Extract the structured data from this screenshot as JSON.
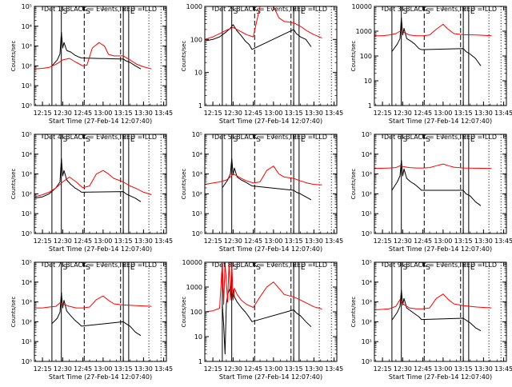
{
  "colors": {
    "events": "#000000",
    "lld": "#ff0000",
    "axis": "#000000"
  },
  "common": {
    "ylabel": "Counts/sec",
    "xlabel": "Start Time (27-Feb-14 12:07:40)",
    "x_ticks": [
      "12:15",
      "12:30",
      "12:45",
      "13:00",
      "13:15",
      "13:30",
      "13:45"
    ],
    "x_range": [
      "12:09",
      "13:47"
    ],
    "y_scale": "log",
    "grid": false,
    "markers": [
      {
        "label": "S",
        "time": "12:29",
        "style": "solid"
      },
      {
        "label": "",
        "time": "12:22",
        "style": "solid"
      },
      {
        "label": "S",
        "time": "12:46",
        "style": "dashed"
      },
      {
        "label": "F",
        "time": "13:13",
        "style": "dashed"
      },
      {
        "label": "",
        "time": "13:15",
        "style": "solid"
      },
      {
        "label": "E",
        "time": "13:19",
        "style": "solid"
      },
      {
        "label": "",
        "time": "13:34",
        "style": "dotted"
      },
      {
        "label": "",
        "time": "13:43",
        "style": "dotted"
      }
    ]
  },
  "chart_data": [
    {
      "type": "line",
      "title": "Det 1: BLACK = Events, RED = LLD",
      "y_ticks": [
        "10⁰",
        "10¹",
        "10²",
        "10³",
        "10⁴",
        "10⁵"
      ],
      "ylim": [
        1,
        100000
      ],
      "series": [
        {
          "color": "black",
          "x": [
            "12:22",
            "12:26",
            "12:28",
            "12:29",
            "12:30",
            "12:31",
            "12:33",
            "12:36",
            "12:39",
            "12:42",
            "12:44",
            "13:15",
            "13:17",
            "13:20",
            "13:24",
            "13:28"
          ],
          "y": [
            100,
            200,
            400,
            5000,
            800,
            1500,
            600,
            500,
            350,
            280,
            250,
            220,
            180,
            150,
            100,
            70
          ]
        },
        {
          "color": "red",
          "x": [
            "12:09",
            "12:15",
            "12:20",
            "12:25",
            "12:28",
            "12:30",
            "12:35",
            "12:40",
            "12:45",
            "12:48",
            "12:52",
            "12:57",
            "13:01",
            "13:04",
            "13:08",
            "13:15",
            "13:20",
            "13:25",
            "13:30",
            "13:36"
          ],
          "y": [
            70,
            75,
            85,
            120,
            160,
            200,
            240,
            150,
            100,
            110,
            800,
            1500,
            1000,
            380,
            320,
            320,
            200,
            120,
            90,
            70
          ]
        }
      ]
    },
    {
      "type": "line",
      "title": "Det 2: BLACK = Events, RED = LLD",
      "y_ticks": [
        "1",
        "10",
        "100",
        "1000"
      ],
      "ylim": [
        1,
        1000
      ],
      "series": [
        {
          "color": "black",
          "x": [
            "12:09",
            "12:15",
            "12:20",
            "12:25",
            "12:28",
            "12:30",
            "12:33",
            "12:36",
            "12:39",
            "12:42",
            "12:44",
            "13:15",
            "13:17",
            "13:20",
            "13:24",
            "13:28"
          ],
          "y": [
            90,
            100,
            120,
            170,
            220,
            280,
            180,
            130,
            90,
            70,
            50,
            200,
            150,
            120,
            100,
            60
          ]
        },
        {
          "color": "red",
          "x": [
            "12:09",
            "12:15",
            "12:20",
            "12:25",
            "12:30",
            "12:35",
            "12:40",
            "12:45",
            "12:50",
            "12:55",
            "13:00",
            "13:04",
            "13:08",
            "13:15",
            "13:20",
            "13:25",
            "13:30",
            "13:36"
          ],
          "y": [
            100,
            120,
            150,
            190,
            230,
            180,
            140,
            120,
            1000,
            1000,
            1000,
            450,
            350,
            320,
            250,
            180,
            140,
            110
          ]
        }
      ]
    },
    {
      "type": "line",
      "title": "Det 3: BLACK = Events, RED = LLD",
      "y_ticks": [
        "1",
        "10",
        "100",
        "1000",
        "10000"
      ],
      "ylim": [
        1,
        10000
      ],
      "series": [
        {
          "color": "black",
          "x": [
            "12:22",
            "12:26",
            "12:28",
            "12:29",
            "12:30",
            "12:31",
            "12:33",
            "12:36",
            "12:39",
            "12:42",
            "12:44",
            "13:15",
            "13:17",
            "13:20",
            "13:24",
            "13:28"
          ],
          "y": [
            150,
            300,
            500,
            3500,
            700,
            1300,
            500,
            400,
            300,
            200,
            180,
            200,
            150,
            120,
            80,
            40
          ]
        },
        {
          "color": "red",
          "x": [
            "12:09",
            "12:15",
            "12:20",
            "12:25",
            "12:28",
            "12:30",
            "12:35",
            "12:40",
            "12:45",
            "12:50",
            "12:55",
            "13:00",
            "13:03",
            "13:08",
            "13:15",
            "13:25",
            "13:36"
          ],
          "y": [
            650,
            650,
            700,
            800,
            1000,
            950,
            700,
            650,
            650,
            700,
            1200,
            1900,
            1300,
            800,
            720,
            700,
            650
          ]
        }
      ]
    },
    {
      "type": "line",
      "title": "Det 4: BLACK = Events, RED = LLD",
      "y_ticks": [
        "10⁰",
        "10¹",
        "10²",
        "10³",
        "10⁴",
        "10⁵"
      ],
      "ylim": [
        1,
        100000
      ],
      "series": [
        {
          "color": "black",
          "x": [
            "12:09",
            "12:15",
            "12:20",
            "12:25",
            "12:28",
            "12:29",
            "12:30",
            "12:31",
            "12:33",
            "12:36",
            "12:39",
            "12:42",
            "12:44",
            "13:15",
            "13:17",
            "13:20",
            "13:24",
            "13:28"
          ],
          "y": [
            60,
            70,
            100,
            200,
            400,
            6000,
            800,
            1500,
            500,
            300,
            200,
            150,
            120,
            130,
            100,
            80,
            60,
            40
          ]
        },
        {
          "color": "red",
          "x": [
            "12:09",
            "12:15",
            "12:20",
            "12:25",
            "12:28",
            "12:30",
            "12:35",
            "12:40",
            "12:45",
            "12:50",
            "12:55",
            "13:00",
            "13:04",
            "13:08",
            "13:15",
            "13:20",
            "13:25",
            "13:30",
            "13:36"
          ],
          "y": [
            70,
            90,
            120,
            200,
            300,
            400,
            700,
            400,
            200,
            250,
            1000,
            1500,
            1000,
            600,
            400,
            250,
            180,
            120,
            90
          ]
        }
      ]
    },
    {
      "type": "line",
      "title": "Det 5: BLACK = Events, RED = LLD",
      "y_ticks": [
        "10⁰",
        "10¹",
        "10²",
        "10³",
        "10⁴",
        "10⁵"
      ],
      "ylim": [
        1,
        100000
      ],
      "series": [
        {
          "color": "black",
          "x": [
            "12:22",
            "12:26",
            "12:28",
            "12:29",
            "12:30",
            "12:31",
            "12:33",
            "12:36",
            "12:39",
            "12:42",
            "12:44",
            "13:15",
            "13:17",
            "13:20",
            "13:24",
            "13:28"
          ],
          "y": [
            200,
            500,
            1000,
            6000,
            900,
            2000,
            700,
            500,
            400,
            300,
            250,
            150,
            120,
            100,
            70,
            50
          ]
        },
        {
          "color": "red",
          "x": [
            "12:09",
            "12:15",
            "12:20",
            "12:25",
            "12:28",
            "12:30",
            "12:33",
            "12:36",
            "12:40",
            "12:45",
            "12:50",
            "12:55",
            "13:00",
            "13:04",
            "13:08",
            "13:15",
            "13:20",
            "13:25",
            "13:30",
            "13:36"
          ],
          "y": [
            300,
            350,
            400,
            500,
            700,
            1000,
            800,
            600,
            450,
            350,
            400,
            1500,
            2500,
            1000,
            700,
            600,
            450,
            350,
            300,
            280
          ]
        }
      ]
    },
    {
      "type": "line",
      "title": "Det 6: BLACK = Events, RED = LLD",
      "y_ticks": [
        "10⁰",
        "10¹",
        "10²",
        "10³",
        "10⁴",
        "10⁵"
      ],
      "ylim": [
        1,
        100000
      ],
      "series": [
        {
          "color": "black",
          "x": [
            "12:22",
            "12:26",
            "12:28",
            "12:29",
            "12:30",
            "12:31",
            "12:33",
            "12:36",
            "12:39",
            "12:42",
            "12:44",
            "13:15",
            "13:17",
            "13:20",
            "13:24",
            "13:28"
          ],
          "y": [
            150,
            400,
            800,
            5000,
            800,
            1800,
            600,
            400,
            300,
            200,
            150,
            150,
            100,
            80,
            40,
            25
          ]
        },
        {
          "color": "red",
          "x": [
            "12:09",
            "12:15",
            "12:20",
            "12:25",
            "12:28",
            "12:30",
            "12:35",
            "12:40",
            "12:45",
            "12:50",
            "12:55",
            "13:00",
            "13:04",
            "13:08",
            "13:15",
            "13:25",
            "13:36"
          ],
          "y": [
            1900,
            1950,
            2000,
            2100,
            2600,
            2400,
            2100,
            2000,
            2000,
            2100,
            2600,
            3200,
            2600,
            2200,
            2000,
            1950,
            1900
          ]
        }
      ]
    },
    {
      "type": "line",
      "title": "Det 7: BLACK = Events, RED = LLD",
      "y_ticks": [
        "10⁰",
        "10¹",
        "10²",
        "10³",
        "10⁴",
        "10⁵"
      ],
      "ylim": [
        1,
        100000
      ],
      "series": [
        {
          "color": "black",
          "x": [
            "12:22",
            "12:26",
            "12:28",
            "12:29",
            "12:30",
            "12:31",
            "12:33",
            "12:36",
            "12:39",
            "12:42",
            "12:44",
            "13:15",
            "13:17",
            "13:20",
            "13:24",
            "13:28"
          ],
          "y": [
            80,
            150,
            300,
            3000,
            500,
            1200,
            350,
            200,
            120,
            80,
            60,
            100,
            80,
            60,
            30,
            20
          ]
        },
        {
          "color": "red",
          "x": [
            "12:09",
            "12:15",
            "12:20",
            "12:25",
            "12:28",
            "12:30",
            "12:35",
            "12:40",
            "12:45",
            "12:50",
            "12:55",
            "13:00",
            "13:04",
            "13:08",
            "13:15",
            "13:25",
            "13:36"
          ],
          "y": [
            500,
            500,
            550,
            600,
            900,
            800,
            600,
            500,
            500,
            550,
            1300,
            2000,
            1200,
            800,
            700,
            650,
            600
          ]
        }
      ]
    },
    {
      "type": "line",
      "title": "Det 8: BLACK = Events, RED = LLD",
      "y_ticks": [
        "1",
        "10",
        "100",
        "1000",
        "10000"
      ],
      "ylim": [
        1,
        10000
      ],
      "series": [
        {
          "color": "black",
          "x": [
            "12:22",
            "12:23",
            "12:24",
            "12:25",
            "12:26",
            "12:28",
            "12:29",
            "12:30",
            "12:31",
            "12:33",
            "12:36",
            "12:39",
            "12:42",
            "12:44",
            "13:15",
            "13:17",
            "13:20",
            "13:24",
            "13:28"
          ],
          "y": [
            200,
            30,
            2,
            200,
            500,
            1000,
            300,
            800,
            400,
            250,
            150,
            100,
            60,
            40,
            120,
            90,
            70,
            40,
            25
          ]
        },
        {
          "color": "red",
          "x": [
            "12:09",
            "12:15",
            "12:20",
            "12:22",
            "12:23",
            "12:24",
            "12:26",
            "12:27",
            "12:28",
            "12:29",
            "12:30",
            "12:31",
            "12:33",
            "12:36",
            "12:40",
            "12:45",
            "12:50",
            "12:55",
            "13:00",
            "13:04",
            "13:08",
            "13:15",
            "13:20",
            "13:25",
            "13:30",
            "13:36"
          ],
          "y": [
            100,
            110,
            140,
            10000,
            200,
            10000,
            250,
            10000,
            300,
            10000,
            300,
            900,
            500,
            300,
            200,
            150,
            400,
            1000,
            1600,
            900,
            500,
            400,
            300,
            220,
            160,
            130
          ]
        }
      ]
    },
    {
      "type": "line",
      "title": "Det 9: BLACK = Events, RED = LLD",
      "y_ticks": [
        "10⁰",
        "10¹",
        "10²",
        "10³",
        "10⁴",
        "10⁵"
      ],
      "ylim": [
        1,
        100000
      ],
      "series": [
        {
          "color": "black",
          "x": [
            "12:22",
            "12:26",
            "12:28",
            "12:29",
            "12:30",
            "12:31",
            "12:33",
            "12:36",
            "12:39",
            "12:42",
            "12:44",
            "13:15",
            "13:17",
            "13:20",
            "13:24",
            "13:28"
          ],
          "y": [
            120,
            300,
            600,
            4000,
            700,
            1500,
            500,
            350,
            250,
            180,
            130,
            150,
            120,
            90,
            50,
            35
          ]
        },
        {
          "color": "red",
          "x": [
            "12:09",
            "12:15",
            "12:20",
            "12:25",
            "12:28",
            "12:30",
            "12:35",
            "12:40",
            "12:45",
            "12:50",
            "12:55",
            "13:00",
            "13:04",
            "13:08",
            "13:15",
            "13:25",
            "13:36"
          ],
          "y": [
            400,
            420,
            450,
            600,
            1300,
            800,
            500,
            450,
            450,
            500,
            1500,
            2500,
            1300,
            800,
            650,
            550,
            500
          ]
        }
      ]
    }
  ]
}
